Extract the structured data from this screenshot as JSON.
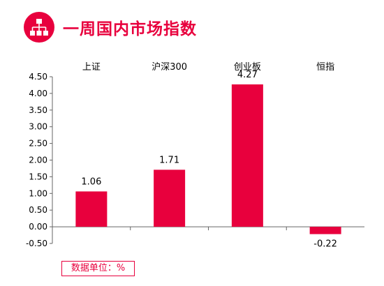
{
  "header": {
    "title": "一周国内市场指数",
    "icon": "hierarchy-icon"
  },
  "colors": {
    "accent": "#e8003d",
    "axis": "#666666"
  },
  "chart_data": {
    "type": "bar",
    "title": "一周国内市场指数",
    "categories": [
      "上证",
      "沪深300",
      "创业板",
      "恒指"
    ],
    "values": [
      1.06,
      1.71,
      4.27,
      -0.22
    ],
    "value_labels": [
      "1.06",
      "1.71",
      "4.27",
      "-0.22"
    ],
    "yticks": [
      "4.50",
      "4.00",
      "3.50",
      "3.00",
      "2.50",
      "2.00",
      "1.50",
      "1.00",
      "0.50",
      "0.00",
      "-0.50"
    ],
    "ylim": [
      -0.5,
      4.5
    ],
    "category_labels_position": "top",
    "grid": false,
    "legend": "none",
    "unit_note": "数据单位：%"
  }
}
